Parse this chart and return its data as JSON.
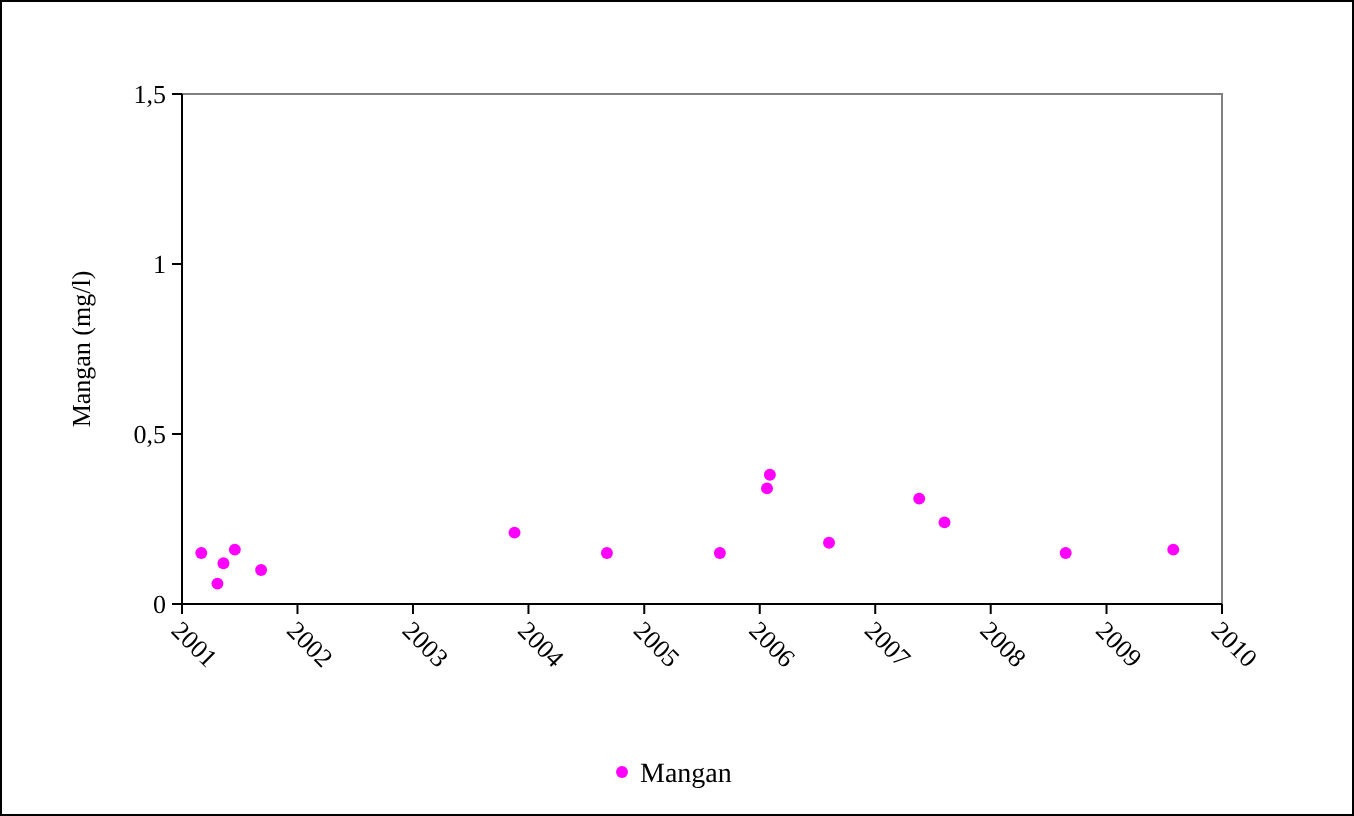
{
  "chart_data": {
    "type": "scatter",
    "ylabel": "Mangan (mg/l)",
    "x": [
      "2001-03-03",
      "2001-04-23",
      "2001-05-12",
      "2001-06-17",
      "2001-09-08",
      "2003-11-18",
      "2004-09-05",
      "2005-08-28",
      "2006-01-24",
      "2006-02-02",
      "2006-08-08",
      "2007-05-20",
      "2007-08-08",
      "2008-08-25",
      "2009-07-31"
    ],
    "series": [
      {
        "name": "Mangan",
        "color": "#ff00ff",
        "values": [
          0.15,
          0.06,
          0.12,
          0.16,
          0.1,
          0.21,
          0.15,
          0.15,
          0.34,
          0.38,
          0.18,
          0.31,
          0.24,
          0.15,
          0.16
        ]
      }
    ],
    "xlim": [
      "2001",
      "2010"
    ],
    "xticks": [
      "2001",
      "2002",
      "2003",
      "2004",
      "2005",
      "2006",
      "2007",
      "2008",
      "2009",
      "2010"
    ],
    "ylim": [
      0,
      1.5
    ],
    "yticks": [
      0,
      {
        "value": 0.5,
        "label": "0,5"
      },
      1,
      {
        "value": 1.5,
        "label": "1,5"
      }
    ],
    "grid": false,
    "legend": "bottom",
    "marker": "circle"
  }
}
